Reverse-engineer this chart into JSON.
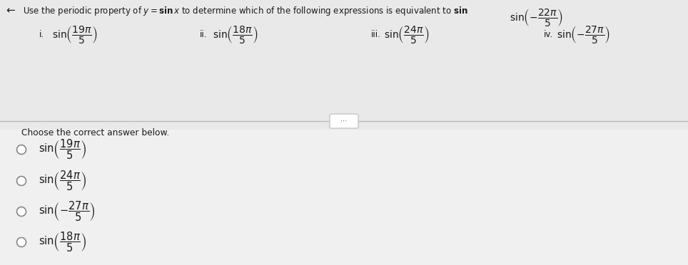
{
  "background_color": "#ebebeb",
  "top_bg": "#e9e9e9",
  "bottom_bg": "#f0f0f0",
  "title_text": "Use the periodic property of y = sin x to determine which of the following expressions is equivalent to sin",
  "main_expr": "-\\frac{22\\pi}{5}",
  "options_top_labels": [
    "i.",
    "ii.",
    "iii.",
    "iv."
  ],
  "options_top_exprs": [
    "$\\sin\\!\\left(\\dfrac{19\\pi}{5}\\right)$",
    "$\\sin\\!\\left(\\dfrac{18\\pi}{5}\\right)$",
    "$\\sin\\!\\left(\\dfrac{24\\pi}{5}\\right)$",
    "$\\sin\\!\\left(-\\dfrac{27\\pi}{5}\\right)$"
  ],
  "prompt": "Choose the correct answer below.",
  "options_bottom_exprs": [
    "$\\sin\\!\\left(\\dfrac{19\\pi}{5}\\right)$",
    "$\\sin\\!\\left(\\dfrac{24\\pi}{5}\\right)$",
    "$\\sin\\!\\left(-\\dfrac{27\\pi}{5}\\right)$",
    "$\\sin\\!\\left(\\dfrac{18\\pi}{5}\\right)$"
  ],
  "text_color": "#1a1a1a",
  "divider_color": "#bbbbbb",
  "radio_edge_color": "#888888",
  "arrow_symbol": "←"
}
